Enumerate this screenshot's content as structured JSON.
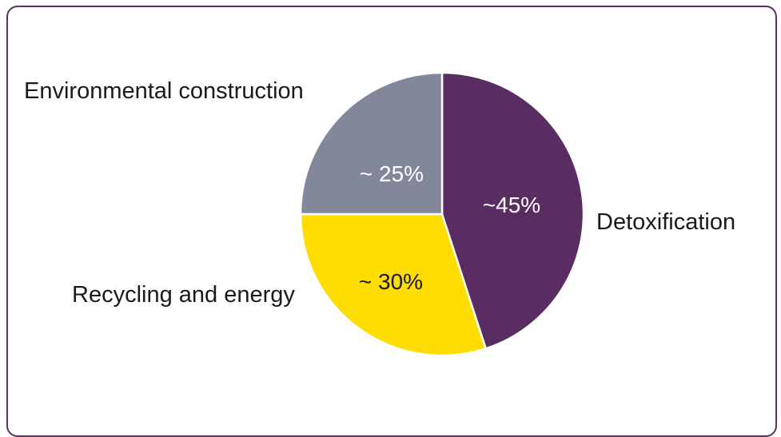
{
  "chart_data": {
    "type": "pie",
    "title": "",
    "slices": [
      {
        "label": "Detoxification",
        "value": 45,
        "value_label": "~45%",
        "color": "#5a2d62",
        "label_color": "#ffffff"
      },
      {
        "label": "Recycling and energy",
        "value": 30,
        "value_label": "~ 30%",
        "color": "#ffdd00",
        "label_color": "#1a1a1a"
      },
      {
        "label": "Environmental construction",
        "value": 25,
        "value_label": "~ 25%",
        "color": "#83879c",
        "label_color": "#ffffff"
      }
    ],
    "start_angle_deg": 0,
    "direction": "clockwise"
  }
}
